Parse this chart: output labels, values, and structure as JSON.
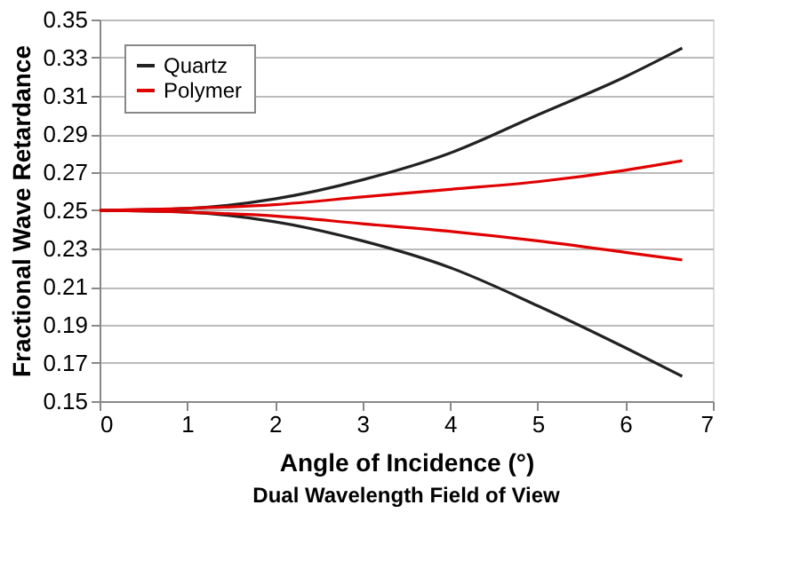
{
  "chart_data": {
    "type": "line",
    "xlabel": "Angle of Incidence (°)",
    "ylabel": "Fractional Wave Retardance",
    "annotations": [
      "Dual Wavelength Field of View"
    ],
    "x": [
      0,
      1,
      2,
      3,
      4,
      5,
      6,
      6.65
    ],
    "series": [
      {
        "name": "Quartz",
        "color": "#222222",
        "values": [
          0.25,
          0.251,
          0.256,
          0.266,
          0.28,
          0.3,
          0.32,
          0.335
        ]
      },
      {
        "color": "#222222",
        "values": [
          0.25,
          0.249,
          0.244,
          0.234,
          0.22,
          0.2,
          0.178,
          0.163
        ]
      },
      {
        "name": "Polymer",
        "color": "#e00000",
        "values": [
          0.25,
          0.251,
          0.253,
          0.257,
          0.261,
          0.265,
          0.271,
          0.276
        ]
      },
      {
        "color": "#e00000",
        "values": [
          0.25,
          0.249,
          0.247,
          0.243,
          0.239,
          0.234,
          0.228,
          0.224
        ]
      }
    ],
    "xlim": [
      0,
      7
    ],
    "xticks": [
      0,
      1,
      2,
      3,
      4,
      5,
      6,
      7
    ],
    "ylim": [
      0.15,
      0.35
    ],
    "yticks": [
      0.15,
      0.17,
      0.19,
      0.21,
      0.23,
      0.25,
      0.27,
      0.29,
      0.31,
      0.33,
      0.35
    ],
    "grid": "y",
    "legend": "top left",
    "marker": "none",
    "line_style": "solid"
  }
}
